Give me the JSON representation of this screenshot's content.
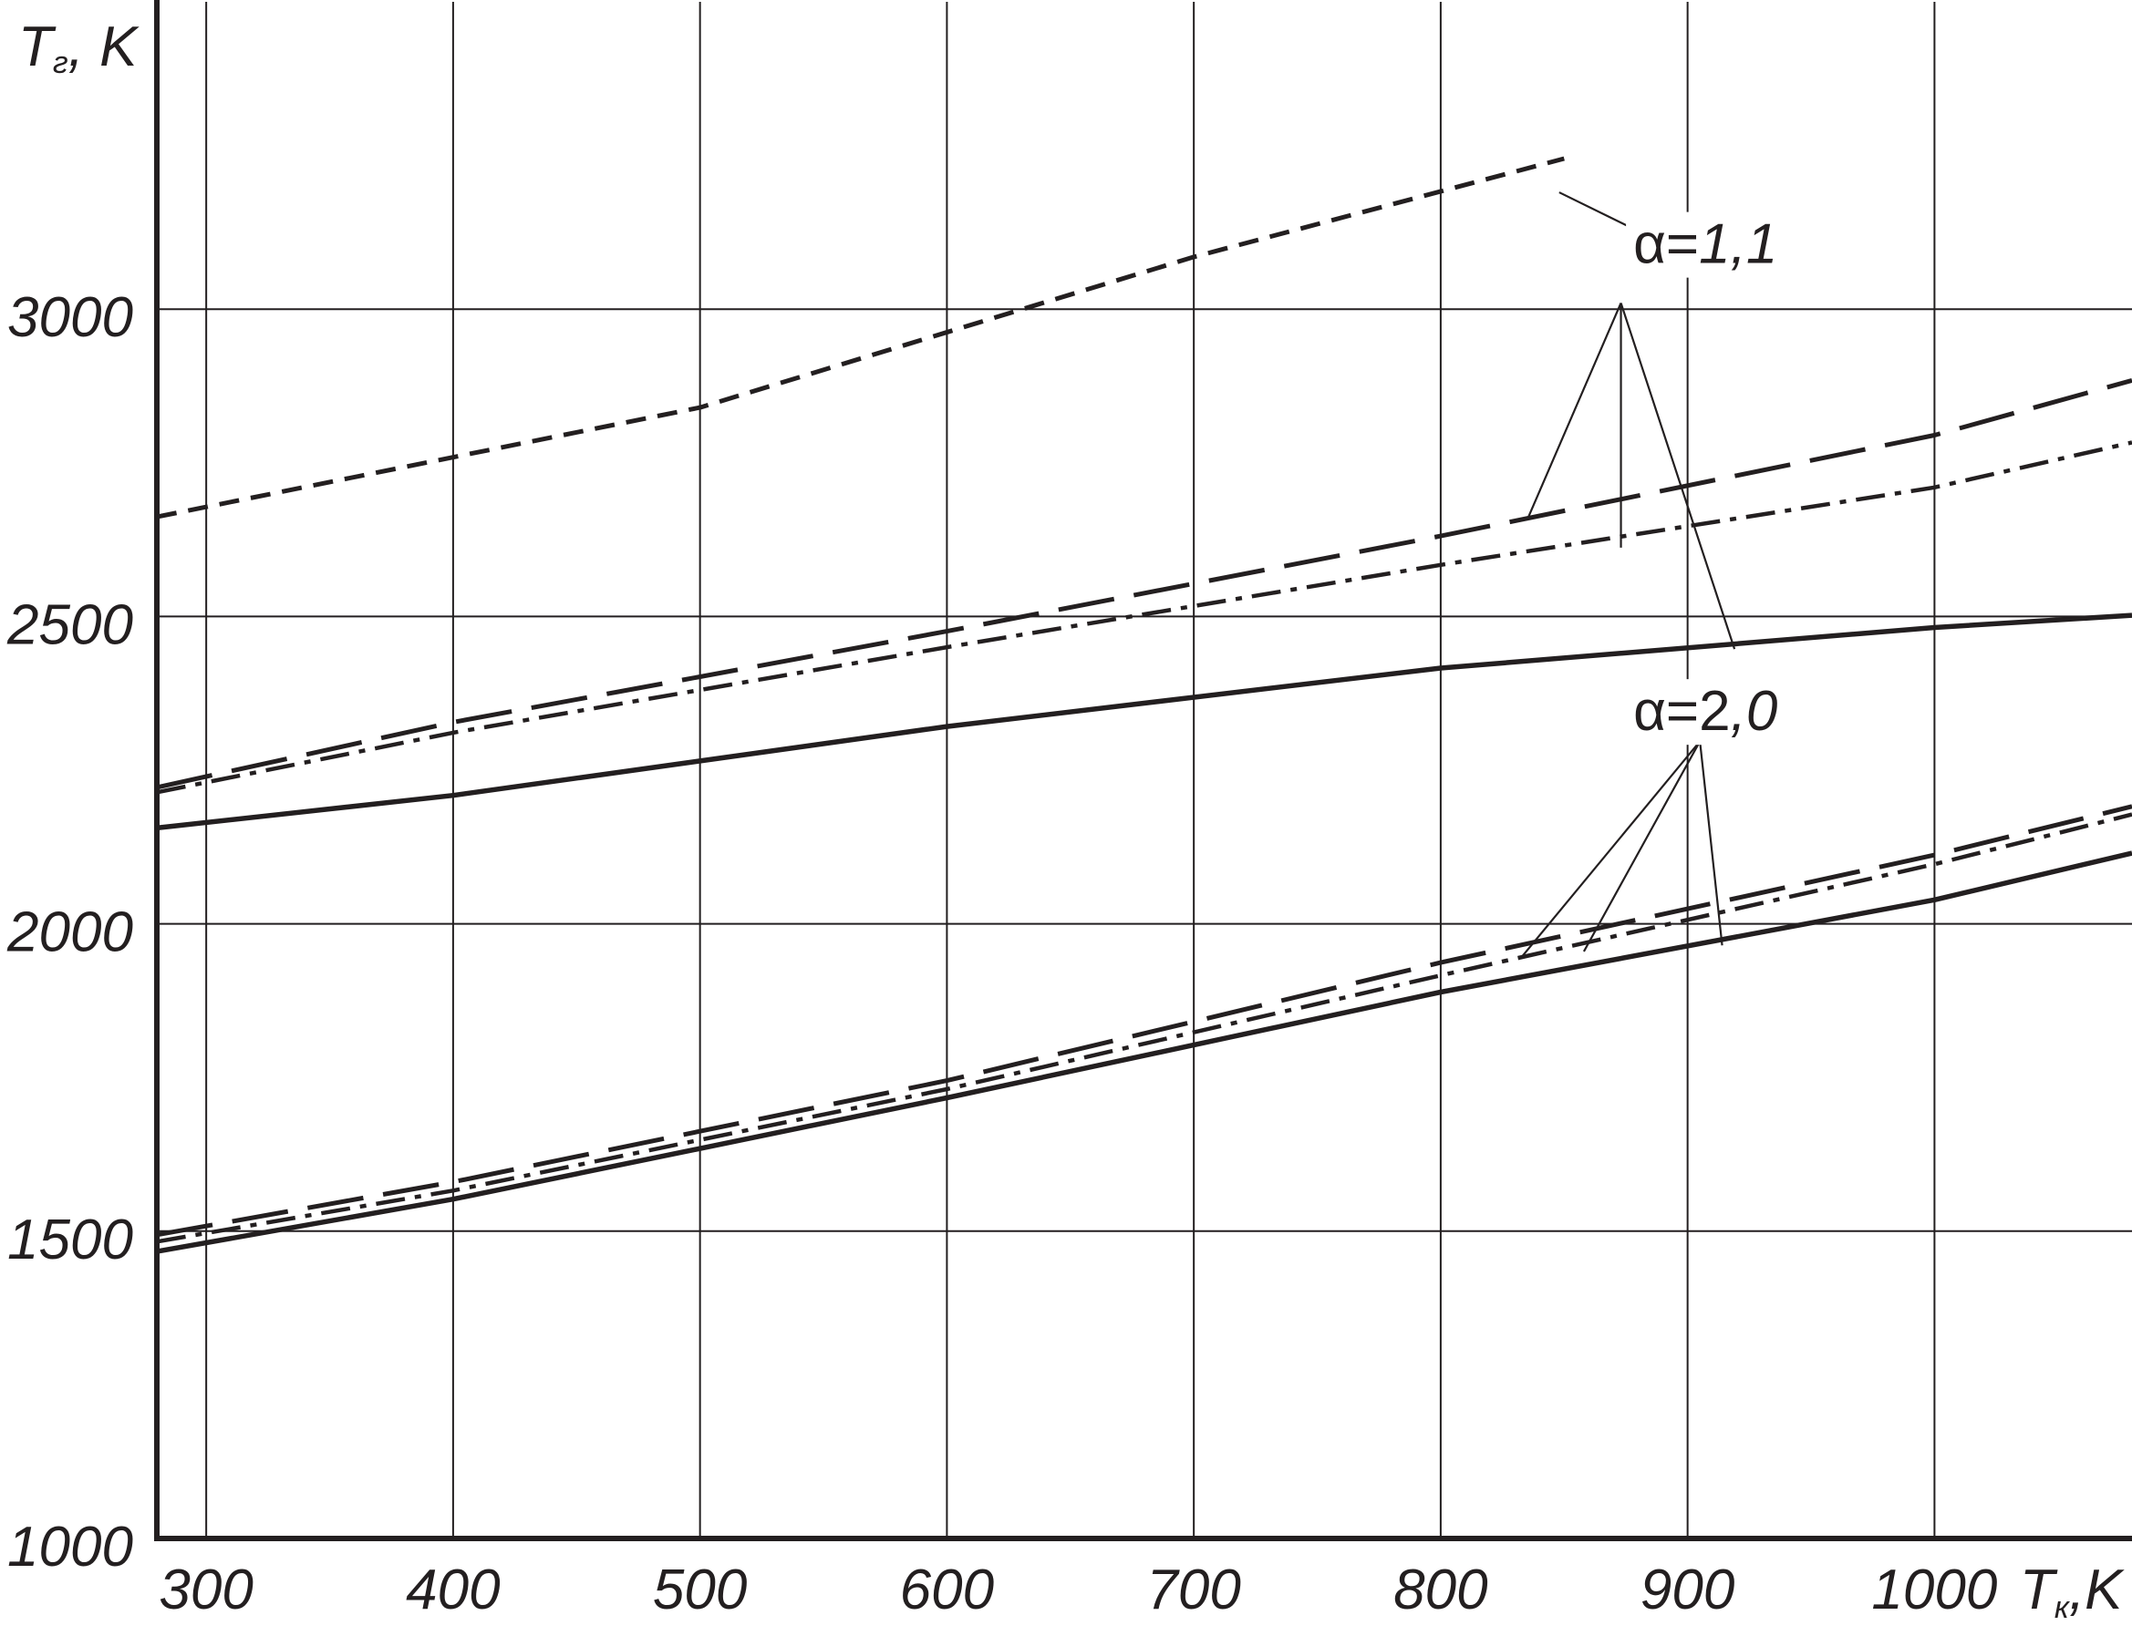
{
  "chart_data": {
    "type": "line",
    "title": "",
    "xlabel": {
      "main": "T",
      "sub": "к",
      "unit": ",K"
    },
    "ylabel": {
      "main": "T",
      "sub": "г",
      "unit": ", K"
    },
    "xlim": [
      280,
      1080
    ],
    "ylim": [
      1000,
      3500
    ],
    "xticks": [
      300,
      400,
      500,
      600,
      700,
      800,
      900,
      1000
    ],
    "xtick_labels": [
      "300",
      "400",
      "500",
      "600",
      "700",
      "800",
      "900",
      "1000"
    ],
    "yticks": [
      1000,
      1500,
      2000,
      2500,
      3000
    ],
    "ytick_labels": [
      "1000",
      "1500",
      "2000",
      "2500",
      "3000"
    ],
    "grid": true,
    "colors": {
      "line": "#231f20",
      "background": "#ffffff"
    },
    "series": [
      {
        "group": "α=1,1",
        "style": "short-dash",
        "x": [
          280,
          500,
          700,
          850
        ],
        "y": [
          2662,
          2840,
          3085,
          3245
        ]
      },
      {
        "group": "α=1,1",
        "style": "long-dash",
        "x": [
          280,
          400,
          600,
          800,
          1000,
          1080
        ],
        "y": [
          2222,
          2328,
          2476,
          2631,
          2795,
          2884
        ]
      },
      {
        "group": "α=1,1",
        "style": "dash-dot",
        "x": [
          280,
          400,
          600,
          800,
          1000,
          1080
        ],
        "y": [
          2214,
          2311,
          2450,
          2584,
          2710,
          2783
        ]
      },
      {
        "group": "α=1,1",
        "style": "solid",
        "x": [
          280,
          400,
          600,
          800,
          1000,
          1080
        ],
        "y": [
          2156,
          2209,
          2321,
          2416,
          2482,
          2502
        ]
      },
      {
        "group": "α=2,0",
        "style": "long-dash",
        "x": [
          280,
          400,
          600,
          800,
          1000,
          1080
        ],
        "y": [
          1494,
          1580,
          1745,
          1937,
          2112,
          2191
        ]
      },
      {
        "group": "α=2,0",
        "style": "dash-dot",
        "x": [
          280,
          400,
          600,
          800,
          1000,
          1080
        ],
        "y": [
          1483,
          1566,
          1731,
          1916,
          2097,
          2178
        ]
      },
      {
        "group": "α=2,0",
        "style": "solid",
        "x": [
          280,
          400,
          600,
          800,
          1000,
          1080
        ],
        "y": [
          1467,
          1552,
          1717,
          1889,
          2039,
          2115
        ]
      }
    ],
    "annotations": [
      {
        "prefix": "α=",
        "value": "1,1",
        "italic_value": true,
        "label_at": [
          878,
          3075
        ],
        "anchor": [
          873,
          3010
        ],
        "targets": [
          [
            835,
            2657
          ],
          [
            873,
            2612
          ],
          [
            919,
            2447
          ]
        ],
        "extra_leader": {
          "from": [
            883,
            3121
          ],
          "to": [
            848,
            3190
          ]
        }
      },
      {
        "prefix": "α=2",
        "value": ",0",
        "italic_value": true,
        "label_at": [
          878,
          2315
        ],
        "anchor": [
          905,
          2297
        ],
        "targets": [
          [
            833,
            1947
          ],
          [
            858,
            1955
          ],
          [
            914,
            1965
          ]
        ]
      }
    ]
  }
}
